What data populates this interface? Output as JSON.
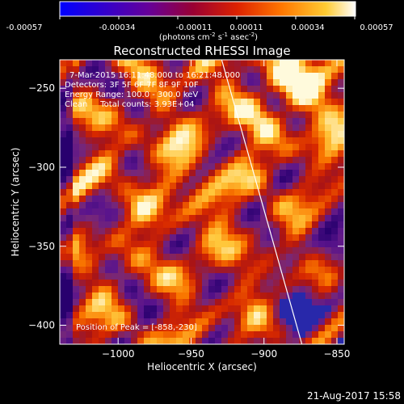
{
  "colorbar": {
    "ticks": [
      "-0.00057",
      "-0.00034",
      "-0.00011",
      "0.00011",
      "0.00034",
      "0.00057"
    ],
    "units_main": "(photons cm",
    "units_exp1": "-2",
    "units_mid": " s",
    "units_exp2": "-1",
    "units_tail": " asec",
    "units_exp3": "-2",
    "units_close": ")"
  },
  "chart_data": {
    "type": "heatmap",
    "title": "Reconstructed RHESSI Image",
    "xlabel": "Heliocentric X (arcsec)",
    "ylabel": "Heliocentric Y (arcsec)",
    "xlim": [
      -1040,
      -845
    ],
    "ylim": [
      -412,
      -232
    ],
    "x_ticks": [
      -1000,
      -950,
      -900,
      -850
    ],
    "y_ticks": [
      -250,
      -300,
      -350,
      -400
    ],
    "color_range": [
      -0.00057,
      0.00057
    ],
    "annotations": [
      "7-Mar-2015 16:11:48.000 to 16:21:48.000",
      "Detectors: 3F 5F 6F 7F 8F 9F 10F",
      "Energy Range: 100.0 - 300.0 keV",
      "Clean     Total counts: 3.93E+04"
    ],
    "peak_label": "Position of Peak = [-858,-230]",
    "limb_line": {
      "x": [
        -929,
        -874
      ],
      "y": [
        -232,
        -412
      ]
    }
  },
  "footer_date": "21-Aug-2017 15:58"
}
